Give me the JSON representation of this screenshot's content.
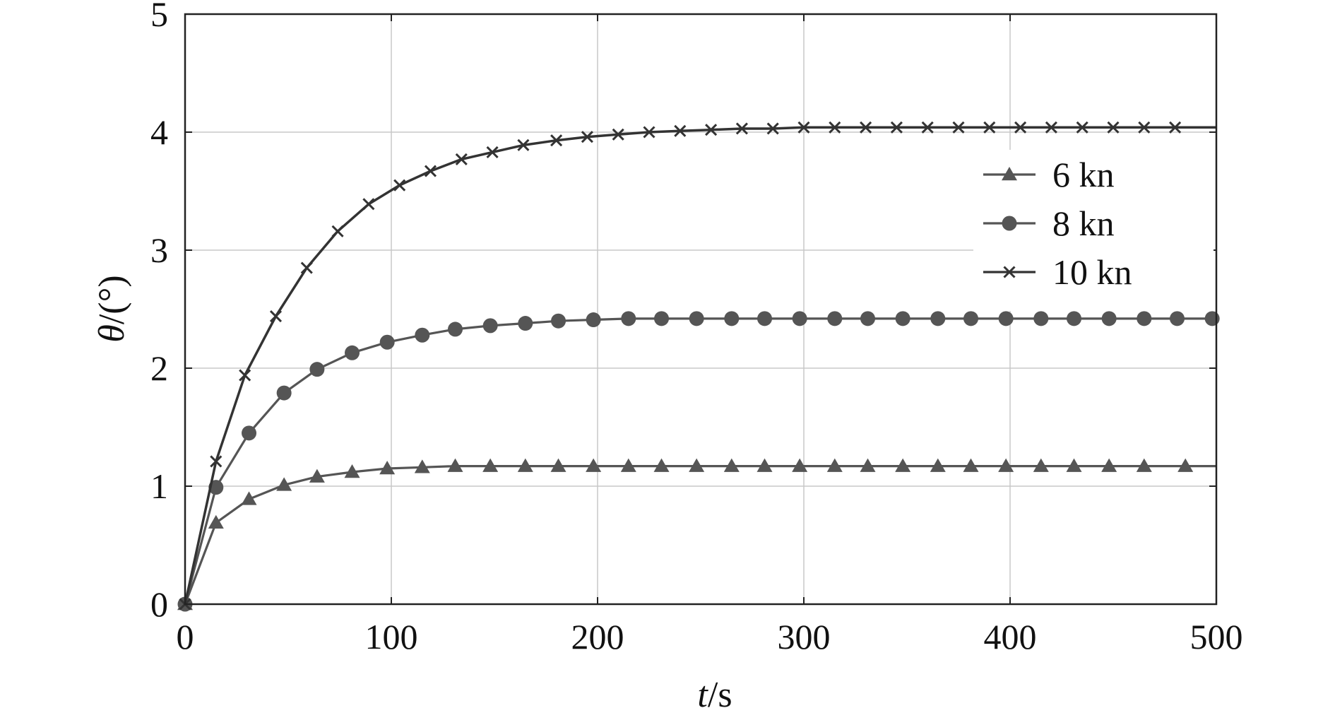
{
  "chart_data": {
    "type": "line",
    "xlabel_italic": "t",
    "xlabel_rest": "/s",
    "ylabel_italic": "θ",
    "ylabel_rest": "/(°)",
    "xlim": [
      0,
      500
    ],
    "ylim": [
      0,
      5
    ],
    "x_ticks": [
      0,
      100,
      200,
      300,
      400,
      500
    ],
    "y_ticks": [
      0,
      1,
      2,
      3,
      4,
      5
    ],
    "x_tick_labels": [
      "0",
      "100",
      "200",
      "300",
      "400",
      "500"
    ],
    "y_tick_labels": [
      "0",
      "1",
      "2",
      "3",
      "4",
      "5"
    ],
    "grid": true,
    "legend_position": "upper-right",
    "series": [
      {
        "name": "6 kn",
        "marker": "triangle",
        "color": "#555555",
        "x": [
          0,
          15,
          31,
          48,
          64,
          81,
          98,
          115,
          131,
          148,
          165,
          181,
          198,
          215,
          231,
          248,
          265,
          281,
          298,
          315,
          331,
          348,
          365,
          381,
          398,
          415,
          431,
          448,
          465,
          485
        ],
        "y": [
          0,
          0.69,
          0.89,
          1.01,
          1.08,
          1.12,
          1.15,
          1.16,
          1.17,
          1.17,
          1.17,
          1.17,
          1.17,
          1.17,
          1.17,
          1.17,
          1.17,
          1.17,
          1.17,
          1.17,
          1.17,
          1.17,
          1.17,
          1.17,
          1.17,
          1.17,
          1.17,
          1.17,
          1.17,
          1.17
        ]
      },
      {
        "name": "8 kn",
        "marker": "circle",
        "color": "#555555",
        "x": [
          0,
          15,
          31,
          48,
          64,
          81,
          98,
          115,
          131,
          148,
          165,
          181,
          198,
          215,
          231,
          248,
          265,
          281,
          298,
          315,
          331,
          348,
          365,
          381,
          398,
          415,
          431,
          448,
          465,
          481,
          498
        ],
        "y": [
          0,
          0.99,
          1.45,
          1.79,
          1.99,
          2.13,
          2.22,
          2.28,
          2.33,
          2.36,
          2.38,
          2.4,
          2.41,
          2.42,
          2.42,
          2.42,
          2.42,
          2.42,
          2.42,
          2.42,
          2.42,
          2.42,
          2.42,
          2.42,
          2.42,
          2.42,
          2.42,
          2.42,
          2.42,
          2.42,
          2.42
        ]
      },
      {
        "name": "10 kn",
        "marker": "cross",
        "color": "#333333",
        "x": [
          0,
          15,
          29,
          44,
          59,
          74,
          89,
          104,
          119,
          134,
          149,
          164,
          180,
          195,
          210,
          225,
          240,
          255,
          270,
          285,
          300,
          315,
          330,
          345,
          360,
          375,
          390,
          405,
          420,
          435,
          450,
          465,
          480
        ],
        "y": [
          0,
          1.21,
          1.94,
          2.44,
          2.85,
          3.16,
          3.39,
          3.55,
          3.67,
          3.77,
          3.83,
          3.89,
          3.93,
          3.96,
          3.98,
          4.0,
          4.01,
          4.02,
          4.03,
          4.03,
          4.04,
          4.04,
          4.04,
          4.04,
          4.04,
          4.04,
          4.04,
          4.04,
          4.04,
          4.04,
          4.04,
          4.04,
          4.04
        ]
      }
    ]
  }
}
